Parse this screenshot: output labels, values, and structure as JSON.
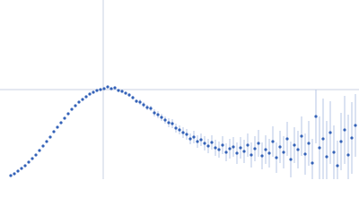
{
  "chart_data": {
    "type": "scatter",
    "color": "#3462b8",
    "error_color": "#b4c4e4",
    "reference_color": "#c9d2e3",
    "xlim": [
      0,
      400
    ],
    "ylim": [
      0,
      200
    ],
    "vlines": [
      115
    ],
    "hlines": [
      100
    ],
    "x": [
      12,
      16,
      20,
      24,
      28,
      32,
      36,
      40,
      44,
      48,
      52,
      56,
      60,
      64,
      68,
      72,
      76,
      80,
      84,
      88,
      92,
      96,
      100,
      104,
      108,
      112,
      116,
      120,
      124,
      128,
      132,
      136,
      140,
      144,
      148,
      152,
      156,
      160,
      164,
      168,
      172,
      176,
      180,
      184,
      188,
      192,
      196,
      200,
      204,
      208,
      212,
      216,
      220,
      224,
      228,
      232,
      236,
      240,
      244,
      248,
      252,
      256,
      260,
      264,
      268,
      272,
      276,
      280,
      284,
      288,
      292,
      296,
      300,
      304,
      308,
      312,
      316,
      320,
      324,
      328,
      332,
      336,
      340,
      344,
      348,
      352,
      356,
      360,
      364,
      368,
      372,
      376,
      380,
      384,
      388,
      392,
      396
    ],
    "values": [
      4,
      6,
      9,
      12,
      15,
      19,
      23,
      27,
      32,
      37,
      42,
      47,
      53,
      58,
      63,
      68,
      73,
      78,
      82,
      86,
      89,
      92,
      95,
      97,
      99,
      100,
      101,
      103,
      101,
      102,
      99,
      98,
      96,
      94,
      91,
      87,
      86,
      83,
      80,
      79,
      74,
      72,
      69,
      66,
      63,
      62,
      57,
      55,
      52,
      50,
      45,
      47,
      42,
      44,
      40,
      37,
      41,
      35,
      33,
      38,
      30,
      34,
      36,
      29,
      35,
      31,
      38,
      27,
      34,
      40,
      26,
      33,
      29,
      42,
      24,
      36,
      30,
      45,
      22,
      38,
      33,
      48,
      28,
      40,
      18,
      70,
      35,
      45,
      25,
      52,
      30,
      15,
      42,
      55,
      27,
      46,
      60
    ],
    "errors": [
      1,
      1,
      1,
      1,
      1,
      1,
      1,
      1,
      1,
      1,
      1,
      1,
      1,
      1,
      1,
      1,
      1,
      1,
      1,
      1,
      1,
      1,
      1,
      1,
      1,
      1,
      1,
      1,
      1,
      1,
      1,
      1,
      1,
      2,
      2,
      2,
      3,
      3,
      3,
      3,
      4,
      4,
      4,
      4,
      5,
      5,
      5,
      5,
      6,
      6,
      6,
      7,
      7,
      7,
      8,
      8,
      8,
      9,
      9,
      10,
      10,
      11,
      11,
      12,
      12,
      13,
      13,
      14,
      14,
      15,
      15,
      16,
      16,
      17,
      17,
      18,
      18,
      19,
      20,
      20,
      21,
      22,
      23,
      25,
      27,
      30,
      35,
      45,
      40,
      35,
      30,
      28,
      32,
      38,
      45,
      40,
      35
    ]
  }
}
